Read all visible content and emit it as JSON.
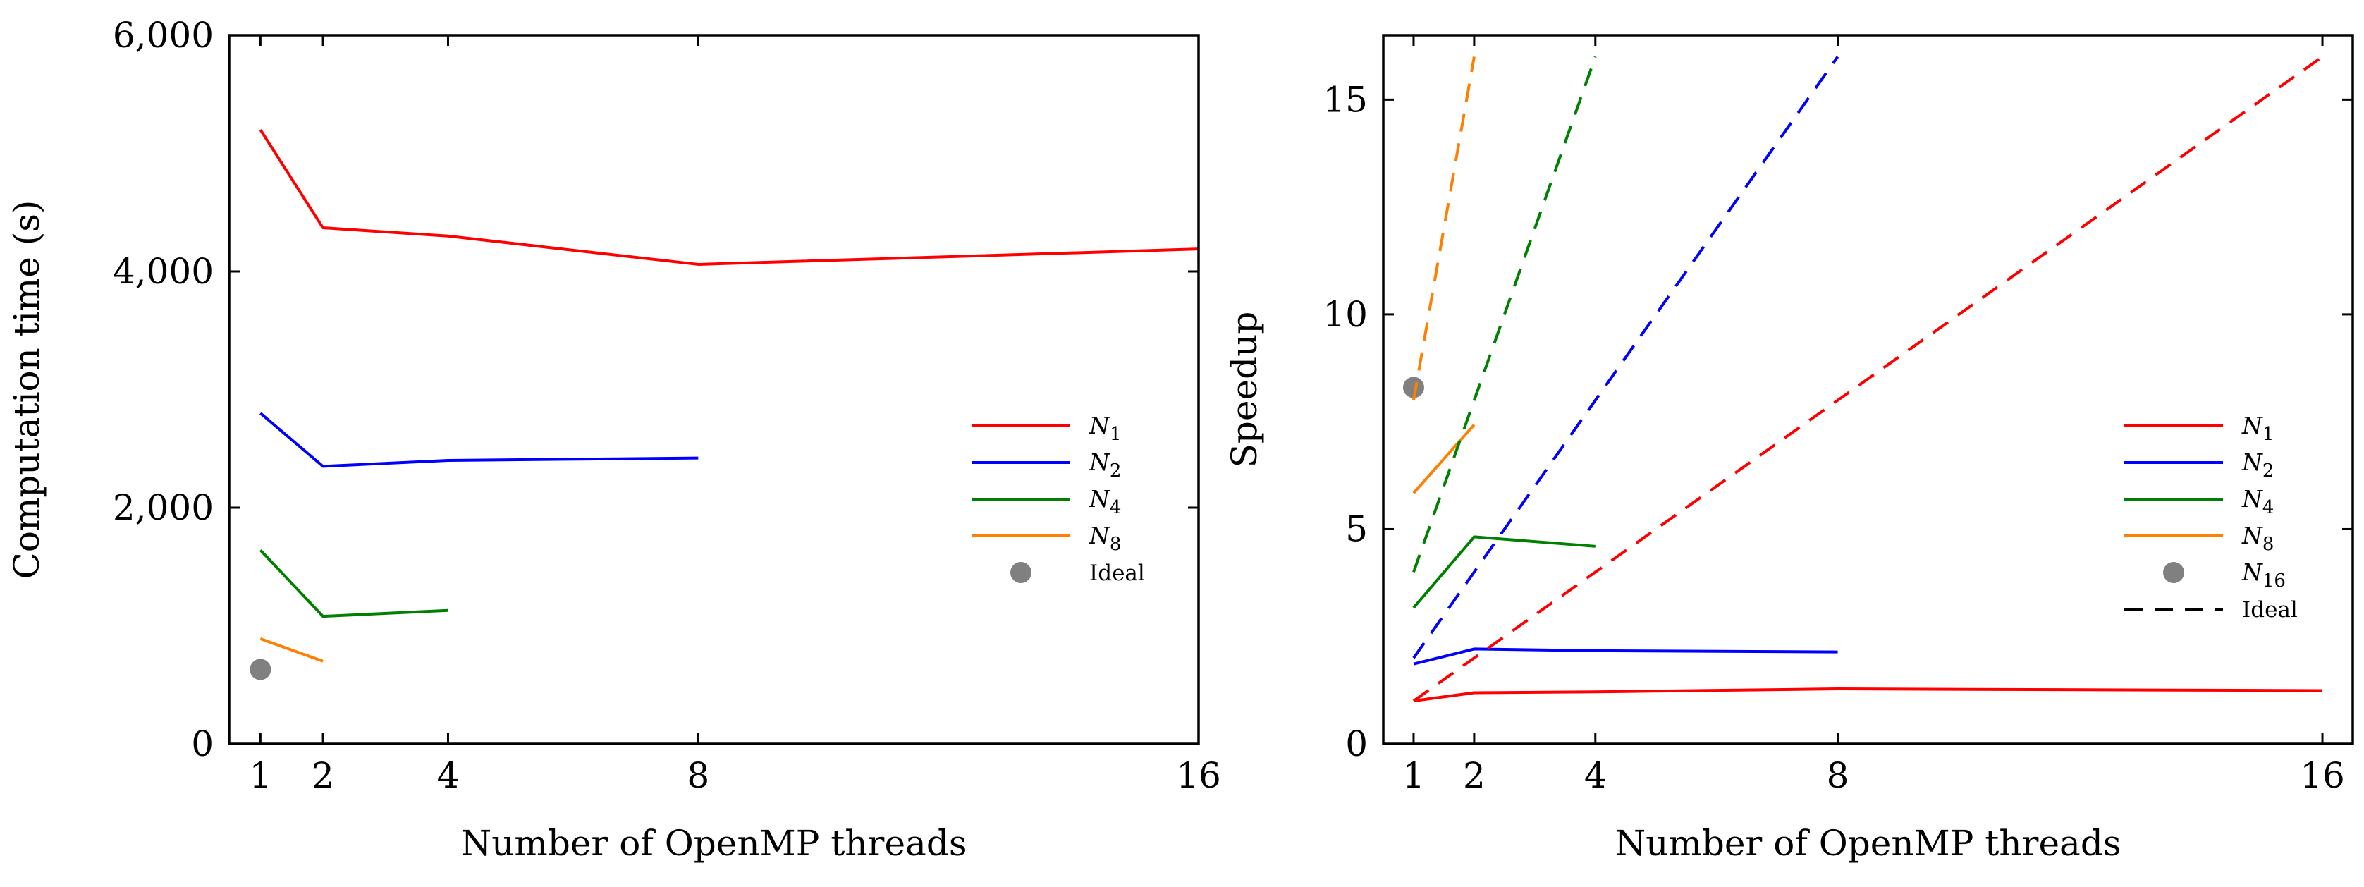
{
  "chart_data": [
    {
      "type": "line",
      "xlabel": "Number of OpenMP threads",
      "ylabel": "Computation time (s)",
      "xlim": [
        0.5,
        16
      ],
      "ylim": [
        0,
        6000
      ],
      "xticks": [
        1,
        2,
        4,
        8,
        16
      ],
      "xtick_labels": [
        "1",
        "2",
        "4",
        "8",
        "16"
      ],
      "yticks": [
        0,
        2000,
        4000,
        6000
      ],
      "ytick_labels": [
        "0",
        "2,000",
        "4,000",
        "6,000"
      ],
      "grid": false,
      "legend_position": "right",
      "series": [
        {
          "name": "N1",
          "name_base": "N",
          "name_sub": "1",
          "color": "#ff0000",
          "style": "solid",
          "x": [
            1,
            2,
            4,
            8,
            16
          ],
          "y": [
            5200,
            4370,
            4300,
            4060,
            4190
          ]
        },
        {
          "name": "N2",
          "name_base": "N",
          "name_sub": "2",
          "color": "#0000ff",
          "style": "solid",
          "x": [
            1,
            2,
            4,
            8
          ],
          "y": [
            2800,
            2350,
            2400,
            2420
          ]
        },
        {
          "name": "N4",
          "name_base": "N",
          "name_sub": "4",
          "color": "#008000",
          "style": "solid",
          "x": [
            1,
            2,
            4
          ],
          "y": [
            1640,
            1080,
            1130
          ]
        },
        {
          "name": "N8",
          "name_base": "N",
          "name_sub": "8",
          "color": "#ff8000",
          "style": "solid",
          "x": [
            1,
            2
          ],
          "y": [
            890,
            700
          ]
        },
        {
          "name": "Ideal",
          "color": "#808080",
          "style": "marker",
          "x": [
            1
          ],
          "y": [
            630
          ]
        }
      ]
    },
    {
      "type": "line",
      "xlabel": "Number of OpenMP threads",
      "ylabel": "Speedup",
      "xlim": [
        0.5,
        16.5
      ],
      "ylim": [
        0,
        16.5
      ],
      "xticks": [
        1,
        2,
        4,
        8,
        16
      ],
      "xtick_labels": [
        "1",
        "2",
        "4",
        "8",
        "16"
      ],
      "yticks": [
        0,
        5,
        10,
        15
      ],
      "ytick_labels": [
        "0",
        "5",
        "10",
        "15"
      ],
      "grid": false,
      "legend_position": "right",
      "series": [
        {
          "name": "N1",
          "name_base": "N",
          "name_sub": "1",
          "color": "#ff0000",
          "style": "solid",
          "x": [
            1,
            2,
            4,
            8,
            16
          ],
          "y": [
            1.0,
            1.19,
            1.21,
            1.28,
            1.24
          ]
        },
        {
          "name": "N2",
          "name_base": "N",
          "name_sub": "2",
          "color": "#0000ff",
          "style": "solid",
          "x": [
            1,
            2,
            4,
            8
          ],
          "y": [
            1.86,
            2.21,
            2.17,
            2.14
          ]
        },
        {
          "name": "N4",
          "name_base": "N",
          "name_sub": "4",
          "color": "#008000",
          "style": "solid",
          "x": [
            1,
            2,
            4
          ],
          "y": [
            3.17,
            4.82,
            4.6
          ]
        },
        {
          "name": "N8",
          "name_base": "N",
          "name_sub": "8",
          "color": "#ff8000",
          "style": "solid",
          "x": [
            1,
            2
          ],
          "y": [
            5.84,
            7.43
          ]
        },
        {
          "name": "N16",
          "name_base": "N",
          "name_sub": "16",
          "color": "#808080",
          "style": "marker",
          "x": [
            1
          ],
          "y": [
            8.3
          ]
        },
        {
          "name": "Ideal",
          "color": "#000000",
          "style": "dashed",
          "legend_only": true
        },
        {
          "name": "Ideal N1",
          "color": "#ff0000",
          "style": "dashed",
          "legend": false,
          "x": [
            1,
            16
          ],
          "y": [
            1,
            16
          ]
        },
        {
          "name": "Ideal N2",
          "color": "#0000ff",
          "style": "dashed",
          "legend": false,
          "x": [
            1,
            8
          ],
          "y": [
            2,
            16
          ]
        },
        {
          "name": "Ideal N4",
          "color": "#008000",
          "style": "dashed",
          "legend": false,
          "x": [
            1,
            4
          ],
          "y": [
            4,
            16
          ]
        },
        {
          "name": "Ideal N8",
          "color": "#ff8000",
          "style": "dashed",
          "legend": false,
          "x": [
            1,
            2
          ],
          "y": [
            8,
            16
          ]
        }
      ]
    }
  ]
}
